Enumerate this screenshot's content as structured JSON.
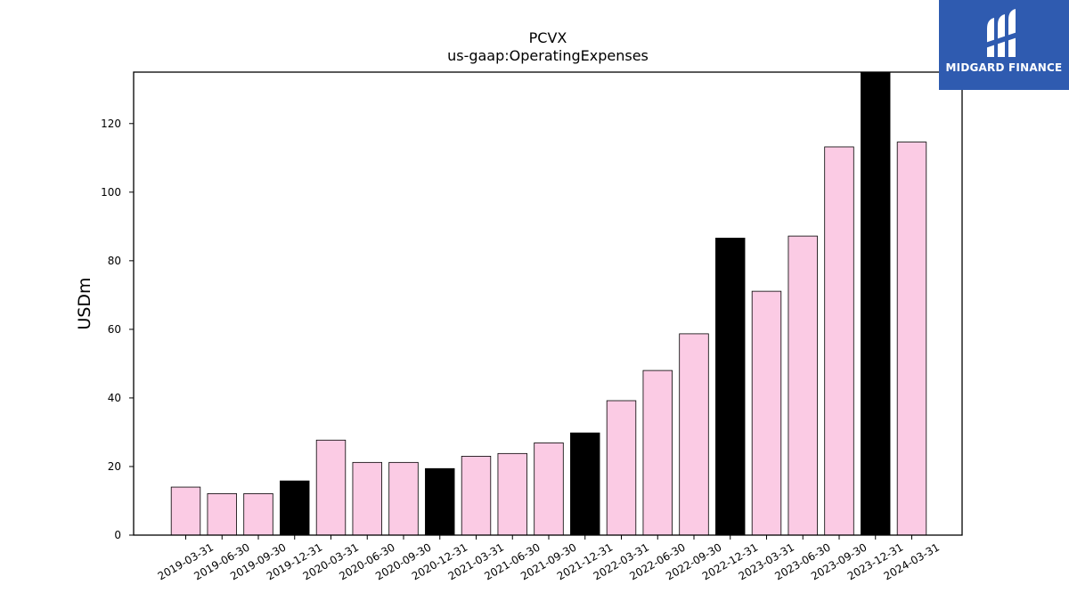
{
  "chart_data": {
    "type": "bar",
    "title": "PCVX",
    "subtitle": "us-gaap:OperatingExpenses",
    "xlabel": "",
    "ylabel": "USDm",
    "ylim": [
      0,
      135
    ],
    "yticks": [
      0,
      20,
      40,
      60,
      80,
      100,
      120
    ],
    "grid": false,
    "categories": [
      "2019-03-31",
      "2019-06-30",
      "2019-09-30",
      "2019-12-31",
      "2020-03-31",
      "2020-06-30",
      "2020-09-30",
      "2020-12-31",
      "2021-03-31",
      "2021-06-30",
      "2021-09-30",
      "2021-12-31",
      "2022-03-31",
      "2022-06-30",
      "2022-09-30",
      "2022-12-31",
      "2023-03-31",
      "2023-06-30",
      "2023-09-30",
      "2023-12-31",
      "2024-03-31"
    ],
    "values": [
      14.0,
      12.1,
      12.1,
      15.8,
      27.7,
      21.2,
      21.2,
      19.4,
      23.0,
      23.8,
      26.9,
      29.8,
      39.2,
      48.0,
      58.7,
      86.6,
      71.1,
      87.2,
      113.2,
      135.0,
      114.6
    ],
    "quarter_ends": [
      "2019-12-31",
      "2020-12-31",
      "2021-12-31",
      "2022-12-31",
      "2023-12-31"
    ],
    "colors": {
      "quarter": "#fbcbe4",
      "year_end": "#000000",
      "edge": "#000000"
    }
  },
  "logo": {
    "text": "MIDGARD FINANCE",
    "background": "#2f5bb0"
  }
}
